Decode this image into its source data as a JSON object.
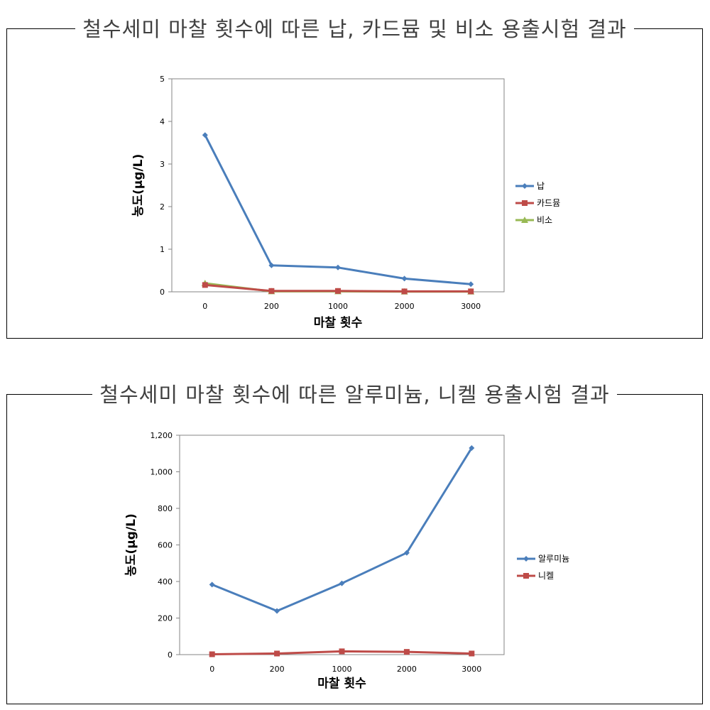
{
  "charts": [
    {
      "title": "철수세미 마찰 횟수에 따른 납, 카드뮴 및 비소 용출시험 결과",
      "chart_data": {
        "type": "line",
        "categories": [
          "0",
          "200",
          "1000",
          "2000",
          "3000"
        ],
        "xlabel": "마찰 횟수",
        "ylabel": "농도(μg/L)",
        "ylim": [
          0,
          5
        ],
        "yticks": [
          "0",
          "1",
          "2",
          "3",
          "4",
          "5"
        ],
        "grid": false,
        "legend": "right",
        "series": [
          {
            "name": "납",
            "values": [
              3.68,
              0.62,
              0.57,
              0.31,
              0.18
            ],
            "color": "#4a7ebb",
            "marker": "diamond"
          },
          {
            "name": "카드뮴",
            "values": [
              0.16,
              0.02,
              0.02,
              0.01,
              0.01
            ],
            "color": "#be4b48",
            "marker": "square"
          },
          {
            "name": "비소",
            "values": [
              0.2,
              0.01,
              0.01,
              0.005,
              0.005
            ],
            "color": "#98b954",
            "marker": "triangle"
          }
        ]
      }
    },
    {
      "title": "철수세미 마찰 횟수에 따른 알루미늄, 니켈 용출시험 결과",
      "chart_data": {
        "type": "line",
        "categories": [
          "0",
          "200",
          "1000",
          "2000",
          "3000"
        ],
        "xlabel": "마찰 횟수",
        "ylabel": "농도(μg/L)",
        "ylim": [
          0,
          1200
        ],
        "yticks": [
          "0",
          "200",
          "400",
          "600",
          "800",
          "1,000",
          "1,200"
        ],
        "grid": false,
        "legend": "right",
        "series": [
          {
            "name": "알루미늄",
            "values": [
              383,
              239,
              390,
              557,
              1130
            ],
            "color": "#4a7ebb",
            "marker": "diamond"
          },
          {
            "name": "니켈",
            "values": [
              2,
              6,
              18,
              15,
              6
            ],
            "color": "#be4b48",
            "marker": "square"
          }
        ]
      }
    }
  ]
}
